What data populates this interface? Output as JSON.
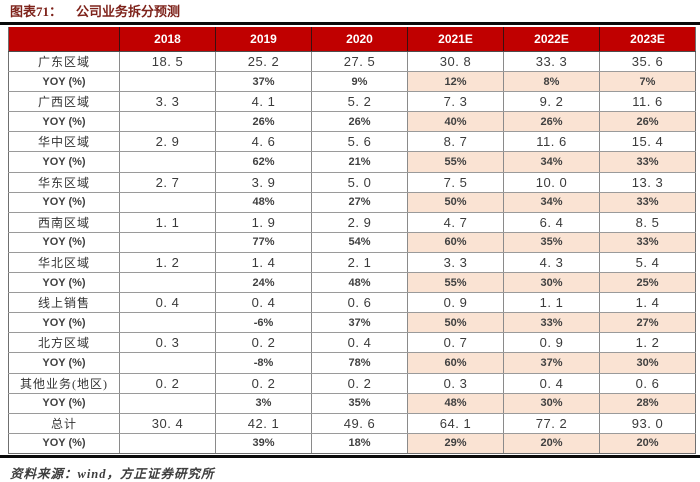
{
  "figure": {
    "label": "图表71：",
    "title": "公司业务拆分预测"
  },
  "colors": {
    "header_bg": "#C00000",
    "header_text": "#FFFFFF",
    "forecast_highlight_bg": "#FAE3D3",
    "title_text": "#7E231B",
    "thick_rule": "#0A0A0A"
  },
  "chart_data": {
    "type": "table",
    "title": "公司业务拆分预测",
    "columns": [
      "",
      "2018",
      "2019",
      "2020",
      "2021E",
      "2022E",
      "2023E"
    ],
    "forecast_columns": [
      "2021E",
      "2022E",
      "2023E"
    ],
    "rows": [
      {
        "label": "广东区域",
        "kind": "value",
        "cells": [
          "18. 5",
          "25. 2",
          "27. 5",
          "30. 8",
          "33. 3",
          "35. 6"
        ]
      },
      {
        "label": "YOY (%)",
        "kind": "yoy",
        "cells": [
          "",
          "37%",
          "9%",
          "12%",
          "8%",
          "7%"
        ]
      },
      {
        "label": "广西区域",
        "kind": "value",
        "cells": [
          "3. 3",
          "4. 1",
          "5. 2",
          "7. 3",
          "9. 2",
          "11. 6"
        ]
      },
      {
        "label": "YOY (%)",
        "kind": "yoy",
        "cells": [
          "",
          "26%",
          "26%",
          "40%",
          "26%",
          "26%"
        ]
      },
      {
        "label": "华中区域",
        "kind": "value",
        "cells": [
          "2. 9",
          "4. 6",
          "5. 6",
          "8. 7",
          "11. 6",
          "15. 4"
        ]
      },
      {
        "label": "YOY (%)",
        "kind": "yoy",
        "cells": [
          "",
          "62%",
          "21%",
          "55%",
          "34%",
          "33%"
        ]
      },
      {
        "label": "华东区域",
        "kind": "value",
        "cells": [
          "2. 7",
          "3. 9",
          "5. 0",
          "7. 5",
          "10. 0",
          "13. 3"
        ]
      },
      {
        "label": "YOY (%)",
        "kind": "yoy",
        "cells": [
          "",
          "48%",
          "27%",
          "50%",
          "34%",
          "33%"
        ]
      },
      {
        "label": "西南区域",
        "kind": "value",
        "cells": [
          "1. 1",
          "1. 9",
          "2. 9",
          "4. 7",
          "6. 4",
          "8. 5"
        ]
      },
      {
        "label": "YOY (%)",
        "kind": "yoy",
        "cells": [
          "",
          "77%",
          "54%",
          "60%",
          "35%",
          "33%"
        ]
      },
      {
        "label": "华北区域",
        "kind": "value",
        "cells": [
          "1. 2",
          "1. 4",
          "2. 1",
          "3. 3",
          "4. 3",
          "5. 4"
        ]
      },
      {
        "label": "YOY (%)",
        "kind": "yoy",
        "cells": [
          "",
          "24%",
          "48%",
          "55%",
          "30%",
          "25%"
        ]
      },
      {
        "label": "线上销售",
        "kind": "value",
        "cells": [
          "0. 4",
          "0. 4",
          "0. 6",
          "0. 9",
          "1. 1",
          "1. 4"
        ]
      },
      {
        "label": "YOY (%)",
        "kind": "yoy",
        "cells": [
          "",
          "-6%",
          "37%",
          "50%",
          "33%",
          "27%"
        ]
      },
      {
        "label": "北方区域",
        "kind": "value",
        "cells": [
          "0. 3",
          "0. 2",
          "0. 4",
          "0. 7",
          "0. 9",
          "1. 2"
        ]
      },
      {
        "label": "YOY (%)",
        "kind": "yoy",
        "cells": [
          "",
          "-8%",
          "78%",
          "60%",
          "37%",
          "30%"
        ]
      },
      {
        "label": "其他业务(地区)",
        "kind": "value",
        "cells": [
          "0. 2",
          "0. 2",
          "0. 2",
          "0. 3",
          "0. 4",
          "0. 6"
        ]
      },
      {
        "label": "YOY (%)",
        "kind": "yoy",
        "cells": [
          "",
          "3%",
          "35%",
          "48%",
          "30%",
          "28%"
        ]
      },
      {
        "label": "总计",
        "kind": "value",
        "cells": [
          "30. 4",
          "42. 1",
          "49. 6",
          "64. 1",
          "77. 2",
          "93. 0"
        ]
      },
      {
        "label": "YOY (%)",
        "kind": "yoy",
        "cells": [
          "",
          "39%",
          "18%",
          "29%",
          "20%",
          "20%"
        ]
      }
    ]
  },
  "footer": {
    "source": "资料来源：wind，方正证券研究所"
  }
}
